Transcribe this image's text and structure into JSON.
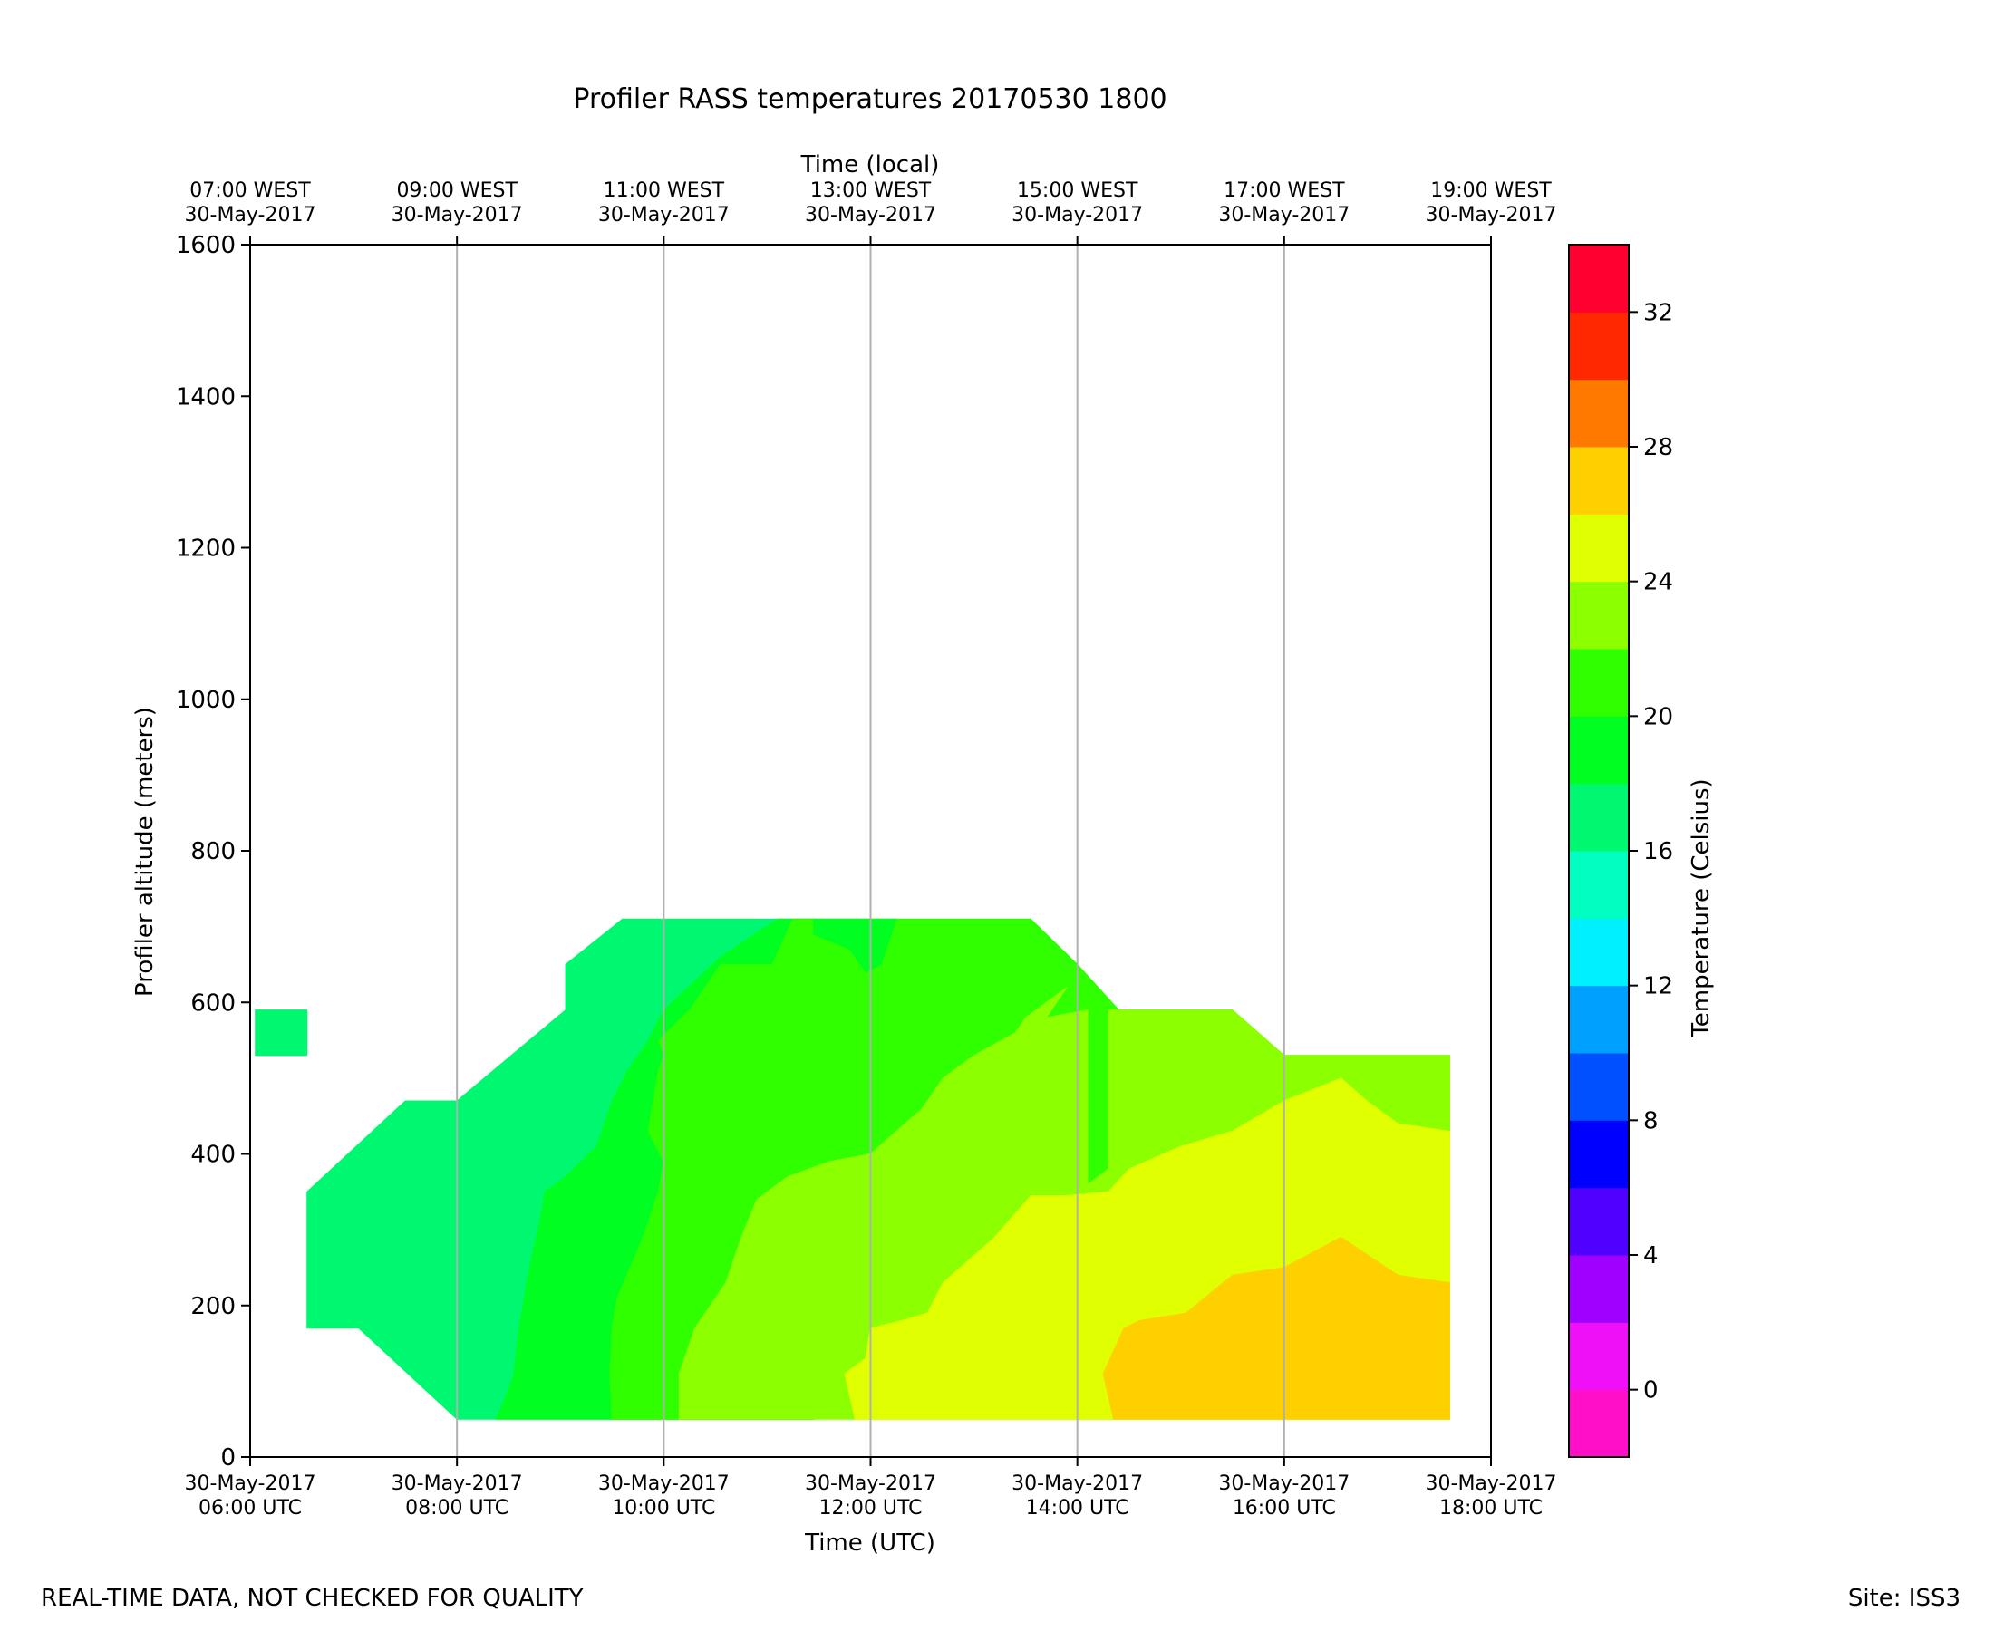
{
  "chart_data": {
    "type": "heatmap",
    "subtype": "filled-contour",
    "title": "Profiler RASS temperatures 20170530 1800",
    "xlabel": "Time (UTC)",
    "xlabel_top": "Time (local)",
    "ylabel": "Profiler altitude (meters)",
    "colorbar_label": "Temperature (Celsius)",
    "xlim_hours_utc": [
      6,
      18
    ],
    "ylim": [
      0,
      1600
    ],
    "yticks": [
      0,
      200,
      400,
      600,
      800,
      1000,
      1200,
      1400,
      1600
    ],
    "x_ticks_bottom": [
      {
        "hour": 6,
        "date": "30-May-2017",
        "time": "06:00 UTC"
      },
      {
        "hour": 8,
        "date": "30-May-2017",
        "time": "08:00 UTC"
      },
      {
        "hour": 10,
        "date": "30-May-2017",
        "time": "10:00 UTC"
      },
      {
        "hour": 12,
        "date": "30-May-2017",
        "time": "12:00 UTC"
      },
      {
        "hour": 14,
        "date": "30-May-2017",
        "time": "14:00 UTC"
      },
      {
        "hour": 16,
        "date": "30-May-2017",
        "time": "16:00 UTC"
      },
      {
        "hour": 18,
        "date": "30-May-2017",
        "time": "18:00 UTC"
      }
    ],
    "x_ticks_top": [
      {
        "hour": 6,
        "time": "07:00 WEST",
        "date": "30-May-2017"
      },
      {
        "hour": 8,
        "time": "09:00 WEST",
        "date": "30-May-2017"
      },
      {
        "hour": 10,
        "time": "11:00 WEST",
        "date": "30-May-2017"
      },
      {
        "hour": 12,
        "time": "13:00 WEST",
        "date": "30-May-2017"
      },
      {
        "hour": 14,
        "time": "15:00 WEST",
        "date": "30-May-2017"
      },
      {
        "hour": 16,
        "time": "17:00 WEST",
        "date": "30-May-2017"
      },
      {
        "hour": 18,
        "time": "19:00 WEST",
        "date": "30-May-2017"
      }
    ],
    "grid": "vertical lines at major x ticks",
    "colorbar": {
      "min": -2,
      "max": 34,
      "step": 2,
      "ticks": [
        0,
        4,
        8,
        12,
        16,
        20,
        24,
        28,
        32
      ],
      "colors": [
        "#ff10c8",
        "#f010f8",
        "#a000ff",
        "#5000ff",
        "#0000ff",
        "#0050ff",
        "#00a0ff",
        "#00f0ff",
        "#00ffc0",
        "#00f870",
        "#00ff20",
        "#30ff00",
        "#8cff00",
        "#e0ff00",
        "#ffd000",
        "#ff7800",
        "#ff2800",
        "#ff0030"
      ]
    },
    "regions": [
      {
        "level_min": 16,
        "level_max": 18,
        "color": "#00f870",
        "polygon": [
          [
            6.05,
            530
          ],
          [
            6.55,
            530
          ],
          [
            6.55,
            590
          ],
          [
            6.05,
            590
          ]
        ]
      },
      {
        "level_min": 16,
        "level_max": 18,
        "color": "#00f870",
        "polygon": [
          [
            6.55,
            170
          ],
          [
            7.05,
            170
          ],
          [
            8.0,
            50
          ],
          [
            11.45,
            50
          ],
          [
            11.45,
            710
          ],
          [
            9.6,
            710
          ],
          [
            9.05,
            650
          ],
          [
            9.05,
            590
          ],
          [
            8.0,
            470
          ],
          [
            7.5,
            470
          ],
          [
            6.55,
            350
          ]
        ]
      },
      {
        "level_min": 18,
        "level_max": 20,
        "color": "#00ff20",
        "polygon": [
          [
            8.38,
            50
          ],
          [
            11.45,
            50
          ],
          [
            11.45,
            710
          ],
          [
            11.1,
            710
          ],
          [
            10.55,
            660
          ],
          [
            10.0,
            590
          ],
          [
            9.85,
            550
          ],
          [
            9.65,
            510
          ],
          [
            9.5,
            470
          ],
          [
            9.35,
            410
          ],
          [
            9.05,
            370
          ],
          [
            8.85,
            350
          ],
          [
            8.8,
            310
          ],
          [
            8.7,
            250
          ],
          [
            8.65,
            210
          ],
          [
            8.6,
            170
          ],
          [
            8.55,
            110
          ],
          [
            8.5,
            90
          ]
        ]
      },
      {
        "level_min": 20,
        "level_max": 22,
        "color": "#30ff00",
        "polygon": [
          [
            9.5,
            50
          ],
          [
            11.45,
            50
          ],
          [
            11.45,
            710
          ],
          [
            11.25,
            710
          ],
          [
            11.05,
            650
          ],
          [
            10.55,
            650
          ],
          [
            10.45,
            630
          ],
          [
            10.25,
            590
          ],
          [
            9.95,
            550
          ],
          [
            10.0,
            530
          ],
          [
            9.95,
            510
          ],
          [
            9.9,
            470
          ],
          [
            9.85,
            430
          ],
          [
            10.0,
            390
          ],
          [
            9.95,
            350
          ],
          [
            9.8,
            290
          ],
          [
            9.55,
            210
          ],
          [
            9.5,
            170
          ],
          [
            9.48,
            110
          ]
        ]
      },
      {
        "level_min": 20,
        "level_max": 22,
        "color": "#30ff00",
        "polygon": [
          [
            11.45,
            710
          ],
          [
            13.55,
            710
          ],
          [
            14.0,
            650
          ],
          [
            14.4,
            590
          ],
          [
            15.5,
            590
          ],
          [
            16.0,
            530
          ],
          [
            17.6,
            530
          ],
          [
            17.6,
            430
          ],
          [
            15.5,
            430
          ],
          [
            15.0,
            410
          ],
          [
            14.3,
            370
          ],
          [
            14.2,
            350
          ],
          [
            11.45,
            350
          ]
        ]
      },
      {
        "level_min": 18,
        "level_max": 20,
        "color": "#00ff20",
        "polygon": [
          [
            11.45,
            710
          ],
          [
            12.25,
            710
          ],
          [
            12.1,
            650
          ],
          [
            11.95,
            640
          ],
          [
            11.8,
            670
          ],
          [
            11.45,
            690
          ]
        ]
      },
      {
        "level_min": 22,
        "level_max": 24,
        "color": "#8cff00",
        "polygon": [
          [
            10.15,
            50
          ],
          [
            17.6,
            50
          ],
          [
            17.6,
            440
          ],
          [
            17.1,
            440
          ],
          [
            16.8,
            480
          ],
          [
            16.55,
            500
          ],
          [
            16.0,
            470
          ],
          [
            15.5,
            430
          ],
          [
            15.0,
            410
          ],
          [
            14.3,
            380
          ],
          [
            14.1,
            360
          ],
          [
            14.1,
            590
          ],
          [
            13.7,
            580
          ],
          [
            13.9,
            620
          ],
          [
            13.5,
            580
          ],
          [
            13.4,
            560
          ],
          [
            13.0,
            530
          ],
          [
            12.7,
            500
          ],
          [
            12.5,
            460
          ],
          [
            12.25,
            430
          ],
          [
            12.0,
            400
          ],
          [
            11.6,
            390
          ],
          [
            11.2,
            370
          ],
          [
            10.9,
            340
          ],
          [
            10.75,
            290
          ],
          [
            10.6,
            230
          ],
          [
            10.3,
            170
          ],
          [
            10.15,
            110
          ]
        ]
      },
      {
        "level_min": 22,
        "level_max": 24,
        "color": "#8cff00",
        "polygon": [
          [
            14.3,
            590
          ],
          [
            15.5,
            590
          ],
          [
            16.0,
            530
          ],
          [
            17.6,
            530
          ],
          [
            17.6,
            440
          ],
          [
            17.1,
            440
          ],
          [
            16.8,
            480
          ],
          [
            16.55,
            500
          ],
          [
            16.0,
            470
          ],
          [
            15.5,
            430
          ],
          [
            15.0,
            410
          ],
          [
            14.5,
            380
          ],
          [
            14.3,
            360
          ]
        ]
      },
      {
        "level_min": 24,
        "level_max": 26,
        "color": "#e0ff00",
        "polygon": [
          [
            11.85,
            50
          ],
          [
            17.6,
            50
          ],
          [
            17.6,
            430
          ],
          [
            17.1,
            440
          ],
          [
            16.8,
            470
          ],
          [
            16.55,
            500
          ],
          [
            16.0,
            470
          ],
          [
            15.5,
            430
          ],
          [
            15.0,
            410
          ],
          [
            14.5,
            380
          ],
          [
            14.3,
            350
          ],
          [
            13.9,
            345
          ],
          [
            13.55,
            345
          ],
          [
            13.2,
            290
          ],
          [
            12.95,
            260
          ],
          [
            12.7,
            230
          ],
          [
            12.55,
            190
          ],
          [
            12.3,
            180
          ],
          [
            12.0,
            170
          ],
          [
            11.95,
            130
          ],
          [
            11.75,
            110
          ]
        ]
      },
      {
        "level_min": 26,
        "level_max": 28,
        "color": "#ffd000",
        "polygon": [
          [
            14.35,
            50
          ],
          [
            17.6,
            50
          ],
          [
            17.6,
            230
          ],
          [
            17.1,
            240
          ],
          [
            16.55,
            290
          ],
          [
            16.0,
            250
          ],
          [
            15.5,
            240
          ],
          [
            15.05,
            190
          ],
          [
            14.6,
            180
          ],
          [
            14.45,
            170
          ],
          [
            14.25,
            110
          ]
        ]
      }
    ]
  },
  "footer": {
    "note": "REAL-TIME DATA, NOT CHECKED FOR QUALITY",
    "site": "Site: ISS3"
  }
}
